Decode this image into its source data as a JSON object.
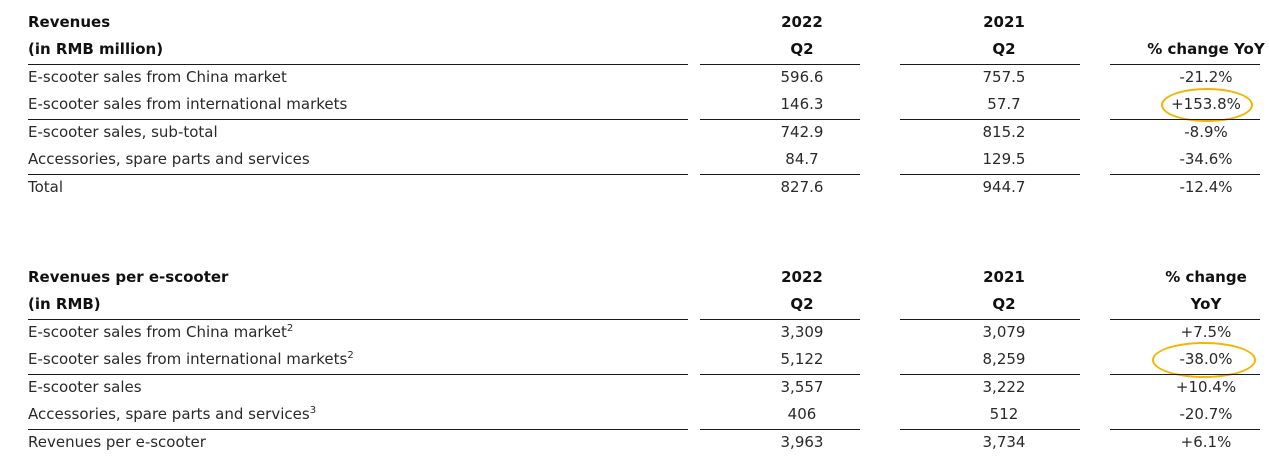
{
  "table1": {
    "header": {
      "label_line1": "Revenues",
      "label_line2": "(in RMB million)",
      "col1_line1": "2022",
      "col1_line2": "Q2",
      "col2_line1": "2021",
      "col2_line2": "Q2",
      "col3_line1": "",
      "col3_line2": "% change YoY"
    },
    "rows": [
      {
        "label": "E-scooter sales from China market",
        "v2022": "596.6",
        "v2021": "757.5",
        "change": "-21.2%"
      },
      {
        "label": "E-scooter sales from international markets",
        "v2022": "146.3",
        "v2021": "57.7",
        "change": "+153.8%"
      },
      {
        "label": "E-scooter sales, sub-total",
        "v2022": "742.9",
        "v2021": "815.2",
        "change": "-8.9%"
      },
      {
        "label": "Accessories, spare parts and services",
        "v2022": "84.7",
        "v2021": "129.5",
        "change": "-34.6%"
      },
      {
        "label": "Total",
        "v2022": "827.6",
        "v2021": "944.7",
        "change": "-12.4%"
      }
    ]
  },
  "table2": {
    "header": {
      "label_line1": "Revenues per e-scooter",
      "label_line2": "(in RMB)",
      "col1_line1": "2022",
      "col1_line2": "Q2",
      "col2_line1": "2021",
      "col2_line2": "Q2",
      "col3_line1": "% change",
      "col3_line2": "YoY"
    },
    "rows": [
      {
        "label": "E-scooter sales from China market",
        "note": "2",
        "v2022": "3,309",
        "v2021": "3,079",
        "change": "+7.5%"
      },
      {
        "label": "E-scooter sales from international markets",
        "note": "2",
        "v2022": "5,122",
        "v2021": "8,259",
        "change": "-38.0%"
      },
      {
        "label": "E-scooter sales",
        "note": "",
        "v2022": "3,557",
        "v2021": "3,222",
        "change": "+10.4%"
      },
      {
        "label": "Accessories, spare parts and services",
        "note": "3",
        "v2022": "406",
        "v2021": "512",
        "change": "-20.7%"
      },
      {
        "label": "Revenues per e-scooter",
        "note": "",
        "v2022": "3,963",
        "v2021": "3,734",
        "change": "+6.1%"
      }
    ]
  },
  "highlight_color": "#f2b400"
}
